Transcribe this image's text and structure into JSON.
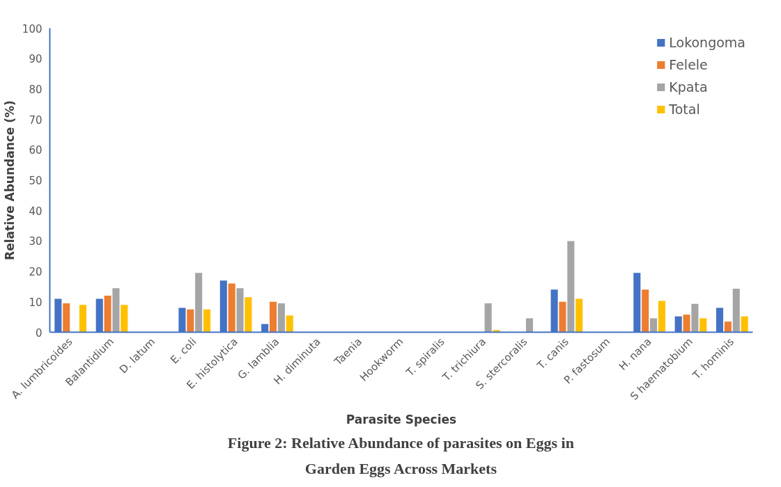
{
  "chart_data": {
    "type": "bar",
    "title": "Figure 2: Relative Abundance of parasites on Eggs in Garden Eggs Across Markets",
    "xlabel": "Parasite Species",
    "ylabel": "Relative Abundance (%)",
    "categories": [
      "A. lumbricoides",
      "Balantidium",
      "D. latum",
      "E. coli",
      "E. histolytica",
      "G. lamblia",
      "H. diminuta",
      "Taenia",
      "Hookworm",
      "T. spiralis",
      "T. trichiura",
      "S. stercoralis",
      "T. canis",
      "P. fastosum",
      "H. nana",
      "S haematobium",
      "T. hominis"
    ],
    "series": [
      {
        "name": "Lokongoma",
        "color": "#4472c4",
        "values": [
          11,
          11,
          0,
          8,
          17,
          2.7,
          0,
          0,
          0,
          0,
          0,
          0,
          14,
          0,
          19.5,
          5.2,
          8
        ]
      },
      {
        "name": "Felele",
        "color": "#ed7d31",
        "values": [
          9.5,
          12,
          0,
          7.5,
          16,
          10,
          0,
          0,
          0,
          0,
          0,
          0,
          10,
          0,
          14,
          5.8,
          3.5
        ]
      },
      {
        "name": "Kpata",
        "color": "#a5a5a5",
        "values": [
          0,
          14.5,
          0,
          19.5,
          14.5,
          9.5,
          0,
          0,
          0,
          0,
          9.5,
          4.6,
          30,
          0,
          4.6,
          9.3,
          14.3
        ]
      },
      {
        "name": "Total",
        "color": "#ffc000",
        "values": [
          9,
          9,
          0,
          7.5,
          11.5,
          5.5,
          0,
          0,
          0,
          0,
          0.7,
          0,
          11,
          0,
          10.3,
          4.6,
          5.2
        ]
      }
    ],
    "ylim": [
      0,
      100
    ],
    "yticks": [
      0,
      10,
      20,
      30,
      40,
      50,
      60,
      70,
      80,
      90,
      100
    ],
    "grid": false,
    "legend": "top right"
  }
}
